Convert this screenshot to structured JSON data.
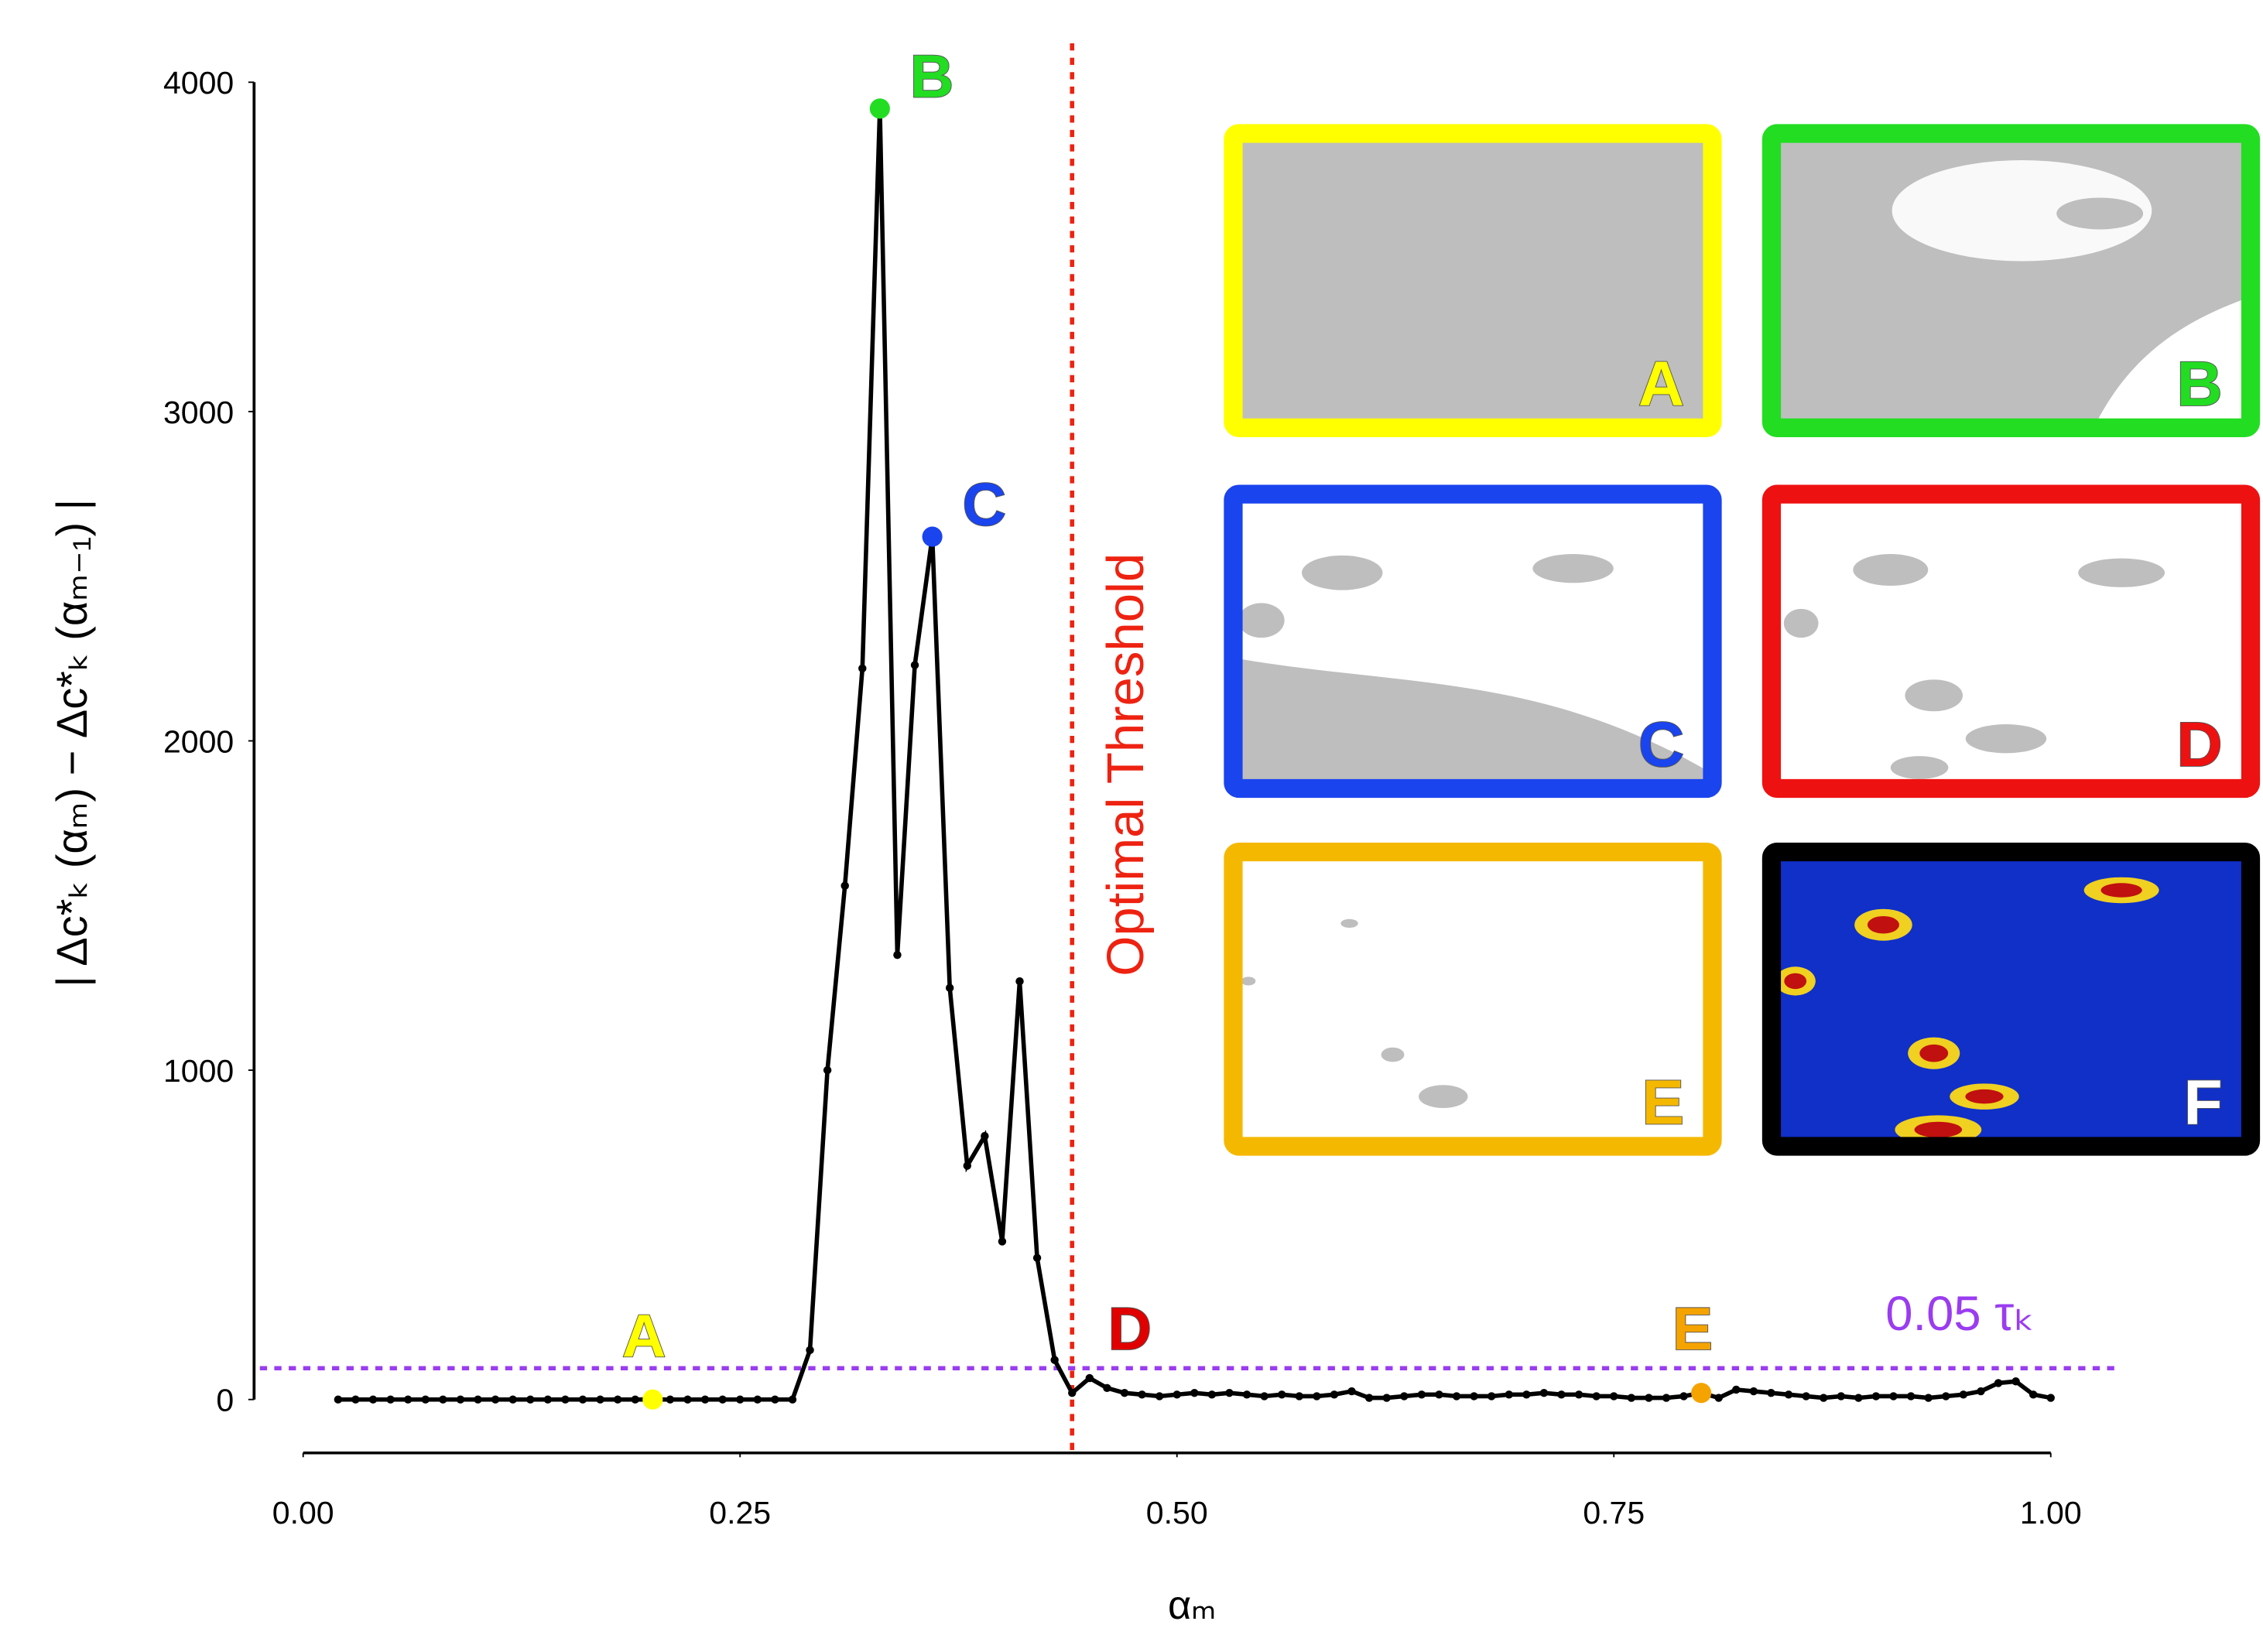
{
  "chart_data": {
    "type": "line",
    "ylabel": "| Δc*ₖ (αₘ) − Δc*ₖ (αₘ₋₁) |",
    "xlabel": "αₘ",
    "x": [
      0.02,
      0.03,
      0.04,
      0.05,
      0.06,
      0.07,
      0.08,
      0.09,
      0.1,
      0.11,
      0.12,
      0.13,
      0.14,
      0.15,
      0.16,
      0.17,
      0.18,
      0.19,
      0.2,
      0.21,
      0.22,
      0.23,
      0.24,
      0.25,
      0.26,
      0.27,
      0.28,
      0.29,
      0.3,
      0.31,
      0.32,
      0.33,
      0.34,
      0.35,
      0.36,
      0.37,
      0.38,
      0.39,
      0.4,
      0.41,
      0.42,
      0.43,
      0.44,
      0.45,
      0.46,
      0.47,
      0.48,
      0.49,
      0.5,
      0.51,
      0.52,
      0.53,
      0.54,
      0.55,
      0.56,
      0.57,
      0.58,
      0.59,
      0.6,
      0.61,
      0.62,
      0.63,
      0.64,
      0.65,
      0.66,
      0.67,
      0.68,
      0.69,
      0.7,
      0.71,
      0.72,
      0.73,
      0.74,
      0.75,
      0.76,
      0.77,
      0.78,
      0.79,
      0.8,
      0.81,
      0.82,
      0.83,
      0.84,
      0.85,
      0.86,
      0.87,
      0.88,
      0.89,
      0.9,
      0.91,
      0.92,
      0.93,
      0.94,
      0.95,
      0.96,
      0.97,
      0.98,
      0.99,
      1.0
    ],
    "values": [
      0,
      0,
      0,
      0,
      0,
      0,
      0,
      0,
      0,
      0,
      0,
      0,
      0,
      0,
      0,
      0,
      0,
      0,
      0,
      0,
      0,
      0,
      0,
      0,
      0,
      0,
      0,
      150,
      1000,
      1560,
      2220,
      3920,
      1350,
      2230,
      2620,
      1250,
      710,
      800,
      480,
      1270,
      430,
      120,
      20,
      65,
      35,
      20,
      15,
      10,
      15,
      20,
      15,
      20,
      15,
      10,
      15,
      10,
      10,
      15,
      25,
      5,
      5,
      10,
      15,
      15,
      10,
      10,
      10,
      15,
      15,
      20,
      15,
      15,
      10,
      10,
      5,
      5,
      5,
      10,
      20,
      5,
      30,
      25,
      20,
      15,
      10,
      5,
      10,
      5,
      10,
      10,
      10,
      5,
      10,
      15,
      25,
      50,
      55,
      15,
      5
    ],
    "color": "#000000",
    "xlim": [
      0,
      1
    ],
    "ylim": [
      0,
      4000
    ],
    "xticks": [
      {
        "value": 0,
        "label": "0.00"
      },
      {
        "value": 0.25,
        "label": "0.25"
      },
      {
        "value": 0.5,
        "label": "0.50"
      },
      {
        "value": 0.75,
        "label": "0.75"
      },
      {
        "value": 1,
        "label": "1.00"
      }
    ],
    "yticks": [
      0,
      1000,
      2000,
      3000,
      4000
    ],
    "highlights": [
      {
        "label": "A",
        "x": 0.2,
        "y": 0,
        "color": "#ffff00"
      },
      {
        "label": "B",
        "x": 0.33,
        "y": 3920,
        "color": "#22dd22"
      },
      {
        "label": "C",
        "x": 0.36,
        "y": 2620,
        "color": "#1a44ee"
      },
      {
        "label": "E",
        "x": 0.8,
        "y": 20,
        "color": "#f5a300"
      }
    ],
    "annotations": [
      {
        "text": "D",
        "x": 0.44,
        "y": 20,
        "color": "#e00000"
      }
    ],
    "vline": {
      "x": 0.44,
      "label": "Optimal Threshold",
      "color": "#ee2211"
    },
    "hline": {
      "y": 95,
      "label": "0.05 τₖ",
      "color": "#9a3cf0"
    },
    "panels": [
      {
        "label": "A",
        "color": "#ffff00"
      },
      {
        "label": "B",
        "color": "#22dd22"
      },
      {
        "label": "C",
        "color": "#1a44ee"
      },
      {
        "label": "D",
        "color": "#ee1111"
      },
      {
        "label": "E",
        "color": "#f5b800"
      },
      {
        "label": "F",
        "color": "#000000"
      }
    ]
  }
}
